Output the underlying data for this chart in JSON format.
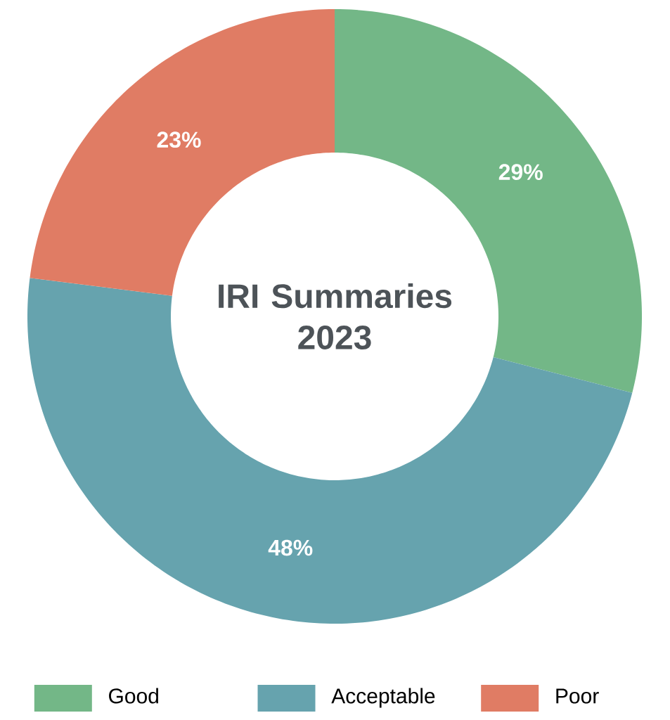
{
  "chart_data": {
    "type": "donut",
    "title": "IRI Summaries 2023",
    "categories": [
      "Good",
      "Acceptable",
      "Poor"
    ],
    "values": [
      29,
      48,
      23
    ],
    "value_labels": [
      "29%",
      "48%",
      "23%"
    ],
    "colors": [
      "#73b787",
      "#66a3ae",
      "#e07c64"
    ],
    "legend": "bottom"
  }
}
